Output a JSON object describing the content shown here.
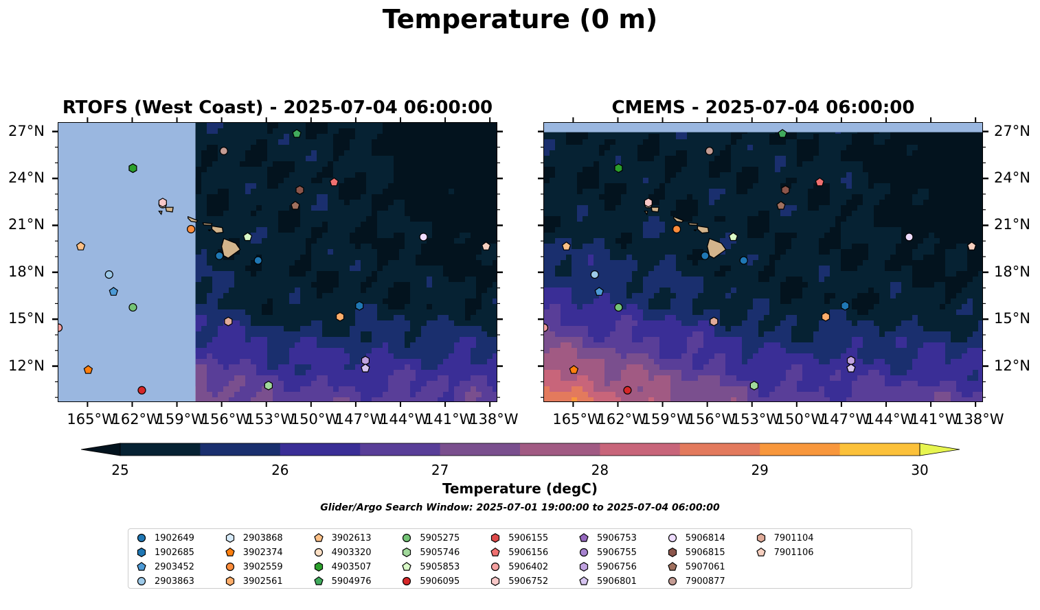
{
  "figure": {
    "title": "Temperature (0 m)",
    "left_panel_title": "RTOFS (West Coast) - 2025-07-04 06:00:00",
    "right_panel_title": "CMEMS - 2025-07-04 06:00:00",
    "search_window": "Glider/Argo Search Window: 2025-07-01 19:00:00 to 2025-07-04 06:00:00"
  },
  "axes": {
    "lon_range": [
      -167,
      -137.5
    ],
    "lat_range": [
      9.7,
      27.6
    ],
    "lon_ticks": [
      -165,
      -162,
      -159,
      -156,
      -153,
      -150,
      -147,
      -144,
      -141,
      -138
    ],
    "lon_labels": [
      "165°W",
      "162°W",
      "159°W",
      "156°W",
      "153°W",
      "150°W",
      "147°W",
      "144°W",
      "141°W",
      "138°W"
    ],
    "lat_ticks": [
      12,
      15,
      18,
      21,
      24,
      27
    ],
    "lat_labels": [
      "12°N",
      "15°N",
      "18°N",
      "21°N",
      "24°N",
      "27°N"
    ]
  },
  "colorbar": {
    "label": "Temperature (degC)",
    "min": 25,
    "max": 30,
    "step": 0.5,
    "tick_values": [
      25,
      26,
      27,
      28,
      29,
      30
    ],
    "tick_labels": [
      "25",
      "26",
      "27",
      "28",
      "29",
      "30"
    ],
    "extend": "both",
    "colors": [
      "#062233",
      "#1a2f6e",
      "#3a2e96",
      "#593e98",
      "#7a4f8e",
      "#a15a83",
      "#c8657a",
      "#e37a5d",
      "#f8973c",
      "#fcc13a"
    ],
    "under_color": "#03131e",
    "over_color": "#e7f550"
  },
  "colors": {
    "land_mask": "#9ab7e0",
    "land": "#d2b48c"
  },
  "legend": [
    {
      "id": "1902649",
      "color": "#1f77b4",
      "marker": "circle"
    },
    {
      "id": "1902685",
      "color": "#1f77b4",
      "marker": "hexagon"
    },
    {
      "id": "2903452",
      "color": "#4d9ad6",
      "marker": "pentagon"
    },
    {
      "id": "2903863",
      "color": "#9ecae9",
      "marker": "circle"
    },
    {
      "id": "2903868",
      "color": "#d6eaf8",
      "marker": "hexagon"
    },
    {
      "id": "3902374",
      "color": "#ff7f0e",
      "marker": "pentagon"
    },
    {
      "id": "3902559",
      "color": "#fd8d3c",
      "marker": "circle"
    },
    {
      "id": "3902561",
      "color": "#fdae6b",
      "marker": "hexagon"
    },
    {
      "id": "3902613",
      "color": "#fdc086",
      "marker": "pentagon"
    },
    {
      "id": "4903320",
      "color": "#fde0c5",
      "marker": "circle"
    },
    {
      "id": "4903507",
      "color": "#2ca02c",
      "marker": "hexagon"
    },
    {
      "id": "5904976",
      "color": "#41ab5d",
      "marker": "pentagon"
    },
    {
      "id": "5905275",
      "color": "#74c476",
      "marker": "circle"
    },
    {
      "id": "5905746",
      "color": "#a1d99b",
      "marker": "hexagon"
    },
    {
      "id": "5905853",
      "color": "#d9f9c7",
      "marker": "pentagon"
    },
    {
      "id": "5906095",
      "color": "#d62728",
      "marker": "circle"
    },
    {
      "id": "5906155",
      "color": "#de4a4a",
      "marker": "hexagon"
    },
    {
      "id": "5906156",
      "color": "#f07070",
      "marker": "pentagon"
    },
    {
      "id": "5906402",
      "color": "#f4a0a0",
      "marker": "circle"
    },
    {
      "id": "5906752",
      "color": "#f8c8c8",
      "marker": "hexagon"
    },
    {
      "id": "5906753",
      "color": "#9467bd",
      "marker": "pentagon"
    },
    {
      "id": "5906755",
      "color": "#a682cf",
      "marker": "circle"
    },
    {
      "id": "5906756",
      "color": "#c0a2e0",
      "marker": "hexagon"
    },
    {
      "id": "5906801",
      "color": "#d6c4f0",
      "marker": "pentagon"
    },
    {
      "id": "5906814",
      "color": "#eedcff",
      "marker": "circle"
    },
    {
      "id": "5906815",
      "color": "#8c564b",
      "marker": "hexagon"
    },
    {
      "id": "5907061",
      "color": "#a0705e",
      "marker": "pentagon"
    },
    {
      "id": "7900877",
      "color": "#c49c94",
      "marker": "circle"
    },
    {
      "id": "7901104",
      "color": "#e0ab99",
      "marker": "hexagon"
    },
    {
      "id": "7901106",
      "color": "#f7d0c0",
      "marker": "pentagon"
    }
  ],
  "platforms": [
    {
      "id": "1902649",
      "lon": -156.2,
      "lat": 19.1
    },
    {
      "id": "1902649",
      "lon": -153.6,
      "lat": 18.8
    },
    {
      "id": "1902685",
      "lon": -146.8,
      "lat": 15.9
    },
    {
      "id": "2903452",
      "lon": -163.3,
      "lat": 16.8
    },
    {
      "id": "2903863",
      "lon": -163.6,
      "lat": 17.9
    },
    {
      "id": "2903868",
      "lon": -162.0,
      "lat": 24.7
    },
    {
      "id": "3902374",
      "lon": -165.0,
      "lat": 11.8
    },
    {
      "id": "3902559",
      "lon": -158.1,
      "lat": 20.8
    },
    {
      "id": "3902561",
      "lon": -148.1,
      "lat": 15.2
    },
    {
      "id": "3902613",
      "lon": -165.5,
      "lat": 19.7
    },
    {
      "id": "4903320",
      "lon": -160.0,
      "lat": 22.4
    },
    {
      "id": "4903507",
      "lon": -162.0,
      "lat": 24.7
    },
    {
      "id": "5904976",
      "lon": -151.0,
      "lat": 26.9
    },
    {
      "id": "5905275",
      "lon": -162.0,
      "lat": 15.8
    },
    {
      "id": "5905746",
      "lon": -152.9,
      "lat": 10.8
    },
    {
      "id": "5905853",
      "lon": -154.3,
      "lat": 20.3
    },
    {
      "id": "5906095",
      "lon": -161.4,
      "lat": 10.5
    },
    {
      "id": "5906156",
      "lon": -148.5,
      "lat": 23.8
    },
    {
      "id": "5906402",
      "lon": -167.0,
      "lat": 14.5
    },
    {
      "id": "5906752",
      "lon": -160.0,
      "lat": 22.5
    },
    {
      "id": "5906756",
      "lon": -146.4,
      "lat": 12.4
    },
    {
      "id": "5906814",
      "lon": -142.5,
      "lat": 20.3
    },
    {
      "id": "5906815",
      "lon": -150.8,
      "lat": 23.3
    },
    {
      "id": "5907061",
      "lon": -151.1,
      "lat": 22.3
    },
    {
      "id": "7900877",
      "lon": -155.9,
      "lat": 25.8
    },
    {
      "id": "7901104",
      "lon": -155.6,
      "lat": 14.9
    },
    {
      "id": "7901106",
      "lon": -138.3,
      "lat": 19.7
    },
    {
      "id": "5906801",
      "lon": -146.4,
      "lat": 11.9
    }
  ]
}
